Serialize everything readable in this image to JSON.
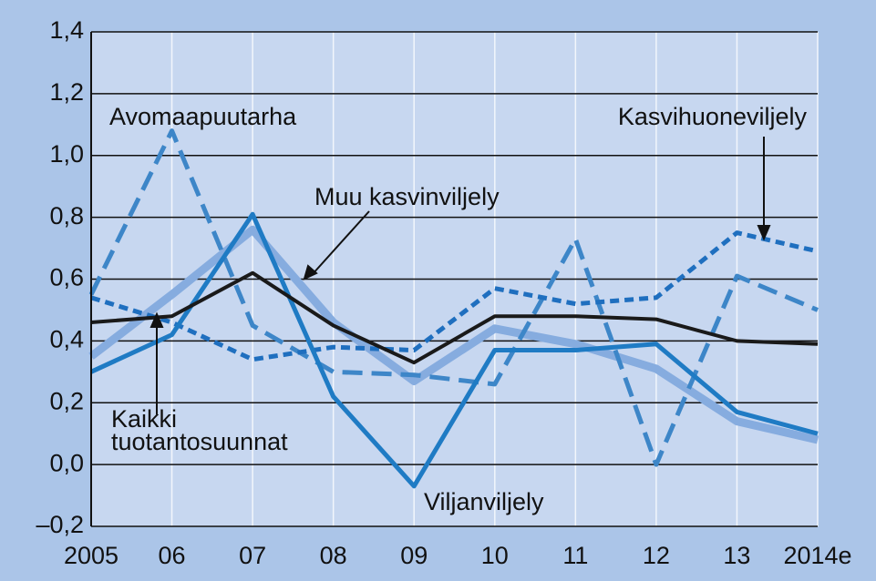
{
  "chart_data": {
    "type": "line",
    "categories": [
      "2005",
      "06",
      "07",
      "08",
      "09",
      "10",
      "11",
      "12",
      "13",
      "2014e"
    ],
    "ylim": [
      -0.2,
      1.4
    ],
    "yticks": [
      {
        "value": -0.2,
        "label": "–0,2"
      },
      {
        "value": 0,
        "label": "0,0"
      },
      {
        "value": 0.2,
        "label": "0,2"
      },
      {
        "value": 0.4,
        "label": "0,4"
      },
      {
        "value": 0.6,
        "label": "0,6"
      },
      {
        "value": 0.8,
        "label": "0,8"
      },
      {
        "value": 1.0,
        "label": "1,0"
      },
      {
        "value": 1.2,
        "label": "1,2"
      },
      {
        "value": 1.4,
        "label": "1,4"
      }
    ],
    "grid": true,
    "series": [
      {
        "name": "Kaikki tuotantosuunnat",
        "color": "#86acdf",
        "linestyle": "solid",
        "values": [
          0.35,
          0.55,
          0.76,
          0.46,
          0.27,
          0.44,
          0.39,
          0.31,
          0.14,
          0.08
        ]
      },
      {
        "name": "Avomaapuutarha",
        "color": "#3d86c8",
        "linestyle": "dashed",
        "values": [
          0.55,
          1.08,
          0.45,
          0.3,
          0.29,
          0.26,
          0.73,
          0.0,
          0.61,
          0.5
        ]
      },
      {
        "name": "Kasvihuoneviljely",
        "color": "#1f6fbf",
        "linestyle": "dotted",
        "values": [
          0.54,
          0.46,
          0.34,
          0.38,
          0.37,
          0.57,
          0.52,
          0.54,
          0.75,
          0.69
        ]
      },
      {
        "name": "Viljanviljely",
        "color": "#1f7bc4",
        "linestyle": "solid",
        "values": [
          0.3,
          0.42,
          0.81,
          0.22,
          -0.07,
          0.37,
          0.37,
          0.39,
          0.17,
          0.1
        ]
      },
      {
        "name": "Muu kasvinviljely",
        "color": "#1a1a1a",
        "linestyle": "solid",
        "values": [
          0.46,
          0.48,
          0.62,
          0.45,
          0.33,
          0.48,
          0.48,
          0.47,
          0.4,
          0.39
        ]
      }
    ]
  }
}
